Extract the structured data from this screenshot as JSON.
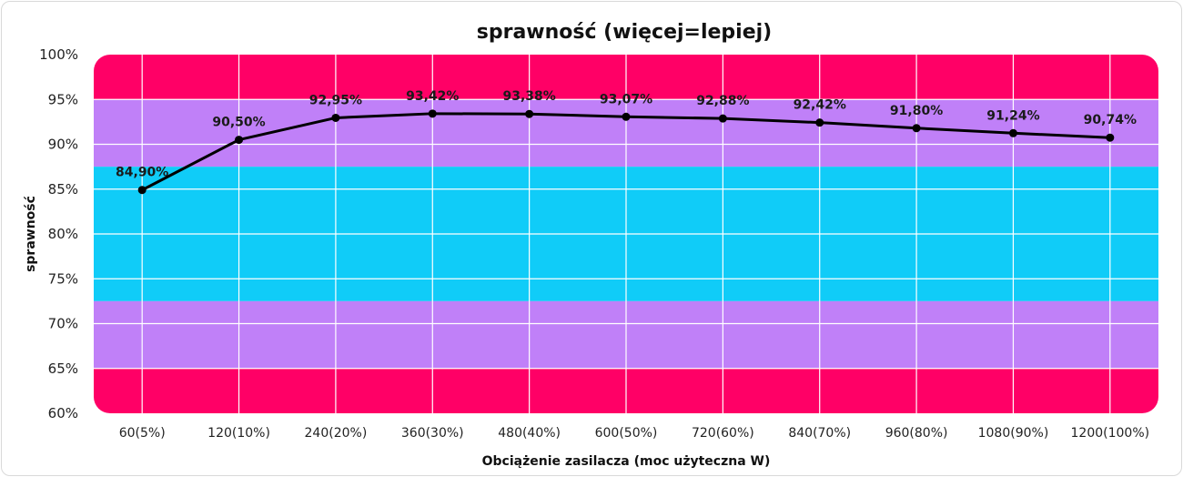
{
  "chart_data": {
    "type": "line",
    "title": "sprawność (więcej=lepiej)",
    "xlabel": "Obciążenie zasilacza (moc użyteczna W)",
    "ylabel": "sprawność",
    "categories": [
      "60(5%)",
      "120(10%)",
      "240(20%)",
      "360(30%)",
      "480(40%)",
      "600(50%)",
      "720(60%)",
      "840(70%)",
      "960(80%)",
      "1080(90%)",
      "1200(100%)"
    ],
    "series": [
      {
        "values": [
          84.9,
          90.5,
          92.95,
          93.42,
          93.38,
          93.07,
          92.88,
          92.42,
          91.8,
          91.24,
          90.74
        ],
        "labels": [
          "84,90%",
          "90,50%",
          "92,95%",
          "93,42%",
          "93,38%",
          "93,07%",
          "92,88%",
          "92,42%",
          "91,80%",
          "91,24%",
          "90,74%"
        ],
        "color": "#000000"
      }
    ],
    "ylim": [
      60,
      100
    ],
    "yticks": [
      60,
      65,
      70,
      75,
      80,
      85,
      90,
      95,
      100
    ],
    "ytick_labels": [
      "60%",
      "65%",
      "70%",
      "75%",
      "80%",
      "85%",
      "90%",
      "95%",
      "100%"
    ],
    "grid": true,
    "background_bands": [
      {
        "from": 95,
        "to": 100,
        "color": "#ff0066"
      },
      {
        "from": 87.5,
        "to": 95,
        "color": "#c080f8"
      },
      {
        "from": 72.5,
        "to": 87.5,
        "color": "#10ccf8"
      },
      {
        "from": 65,
        "to": 72.5,
        "color": "#c080f8"
      },
      {
        "from": 60,
        "to": 65,
        "color": "#ff0066"
      }
    ],
    "grid_color": "#ffffff"
  }
}
